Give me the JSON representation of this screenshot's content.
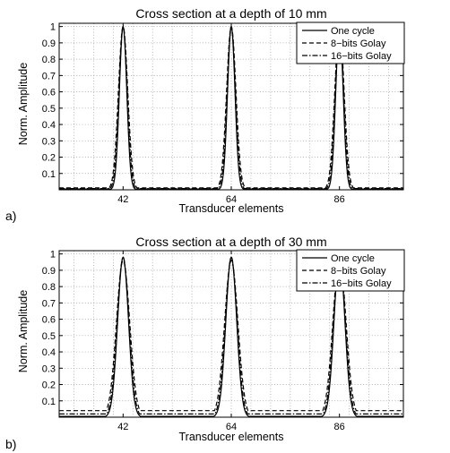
{
  "chart_data": [
    {
      "type": "line",
      "panel_label": "a)",
      "title": "Cross section at a depth of 10 mm",
      "xlabel": "Transducer elements",
      "ylabel": "Norm. Amplitude",
      "xlim": [
        29,
        99
      ],
      "ylim": [
        0,
        1.02
      ],
      "xticks": [
        42,
        64,
        86
      ],
      "yticks": [
        0.1,
        0.2,
        0.3,
        0.4,
        0.5,
        0.6,
        0.7,
        0.8,
        0.9,
        1
      ],
      "grid": true,
      "legend_position": "top-right",
      "peaks": [
        42,
        64,
        86
      ],
      "series": [
        {
          "name": "One cycle",
          "style": "solid",
          "peak": 1.0,
          "width": 0.75,
          "floor": 0.005
        },
        {
          "name": "8−bits Golay",
          "style": "dashed",
          "peak": 1.0,
          "width": 0.95,
          "floor": 0.012
        },
        {
          "name": "16−bits Golay",
          "style": "dashdot",
          "peak": 1.0,
          "width": 0.85,
          "floor": 0.008
        }
      ]
    },
    {
      "type": "line",
      "panel_label": "b)",
      "title": "Cross section at a depth of 30 mm",
      "xlabel": "Transducer elements",
      "ylabel": "Norm. Amplitude",
      "xlim": [
        29,
        99
      ],
      "ylim": [
        0,
        1.02
      ],
      "xticks": [
        42,
        64,
        86
      ],
      "yticks": [
        0.1,
        0.2,
        0.3,
        0.4,
        0.5,
        0.6,
        0.7,
        0.8,
        0.9,
        1
      ],
      "grid": true,
      "legend_position": "top-right",
      "peaks": [
        42,
        64,
        86
      ],
      "series": [
        {
          "name": "One cycle",
          "style": "solid",
          "peak": 0.98,
          "width": 1.1,
          "floor": 0.005
        },
        {
          "name": "8−bits Golay",
          "style": "dashed",
          "peak": 0.96,
          "width": 1.35,
          "floor": 0.04
        },
        {
          "name": "16−bits Golay",
          "style": "dashdot",
          "peak": 0.98,
          "width": 1.2,
          "floor": 0.02
        }
      ]
    }
  ]
}
